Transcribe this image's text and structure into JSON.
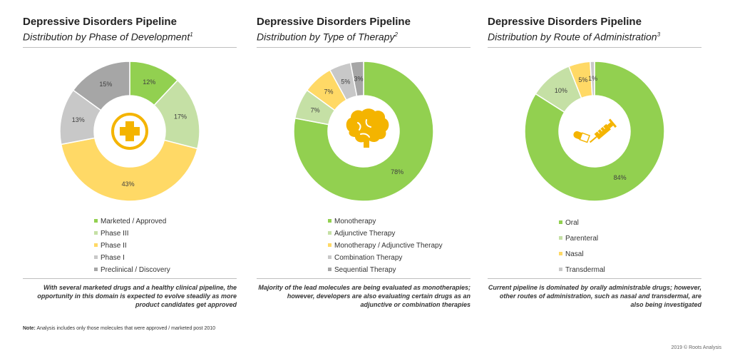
{
  "panels": [
    {
      "title": "Depressive Disorders Pipeline",
      "subtitle": "Distribution by Phase of Development",
      "footnote_mark": "1",
      "center_icon": "medical-cross-icon",
      "caption": "With several marketed drugs and a healthy clinical pipeline, the opportunity in this domain is expected to evolve steadily as more product candidates get approved",
      "legend": [
        "Marketed / Approved",
        "Phase III",
        "Phase II",
        "Phase I",
        "Preclinical / Discovery"
      ]
    },
    {
      "title": "Depressive Disorders Pipeline",
      "subtitle": "Distribution by Type of Therapy",
      "footnote_mark": "2",
      "center_icon": "brain-icon",
      "caption": "Majority of the lead molecules are being evaluated as monotherapies; however, developers are also evaluating certain drugs as an adjunctive or combination therapies",
      "legend": [
        "Monotherapy",
        "Adjunctive Therapy",
        "Monotherapy / Adjunctive Therapy",
        "Combination Therapy",
        "Sequential Therapy"
      ]
    },
    {
      "title": "Depressive Disorders Pipeline",
      "subtitle": "Distribution by Route of Administration",
      "footnote_mark": "3",
      "center_icon": "pill-syringe-icon",
      "caption": "Current pipeline is dominated by orally administrable drugs; however, other routes of administration, such as nasal and transdermal, are also being investigated",
      "legend": [
        "Oral",
        "Parenteral",
        "Nasal",
        "Transdermal"
      ]
    }
  ],
  "note": {
    "label": "Note:",
    "text": " Analysis includes only those molecules that were approved / marketed post 2010"
  },
  "copyright": "2019 © Roots Analysis",
  "chart_data": [
    {
      "type": "pie",
      "title": "Depressive Disorders Pipeline",
      "subtitle": "Distribution by Phase of Development",
      "categories": [
        "Marketed / Approved",
        "Phase III",
        "Phase II",
        "Phase I",
        "Preclinical / Discovery"
      ],
      "values": [
        12,
        17,
        43,
        13,
        15
      ],
      "labels": [
        "12%",
        "17%",
        "43%",
        "13%",
        "15%"
      ],
      "colors": [
        "#92d050",
        "#c5e0a5",
        "#ffd966",
        "#c8c8c8",
        "#a6a6a6"
      ],
      "legend": "bottom"
    },
    {
      "type": "pie",
      "title": "Depressive Disorders Pipeline",
      "subtitle": "Distribution by Type of Therapy",
      "categories": [
        "Monotherapy",
        "Adjunctive Therapy",
        "Monotherapy / Adjunctive Therapy",
        "Combination Therapy",
        "Sequential Therapy"
      ],
      "values": [
        78,
        7,
        7,
        5,
        3
      ],
      "labels": [
        "78%",
        "7%",
        "7%",
        "5%",
        "3%"
      ],
      "colors": [
        "#92d050",
        "#c5e0a5",
        "#ffd966",
        "#c8c8c8",
        "#a6a6a6"
      ],
      "legend": "bottom"
    },
    {
      "type": "pie",
      "title": "Depressive Disorders Pipeline",
      "subtitle": "Distribution by Route of Administration",
      "categories": [
        "Oral",
        "Parenteral",
        "Nasal",
        "Transdermal"
      ],
      "values": [
        84,
        10,
        5,
        1
      ],
      "labels": [
        "84%",
        "10%",
        "5%",
        "1%"
      ],
      "colors": [
        "#92d050",
        "#c5e0a5",
        "#ffd966",
        "#c8c8c8"
      ],
      "legend": "bottom"
    }
  ]
}
